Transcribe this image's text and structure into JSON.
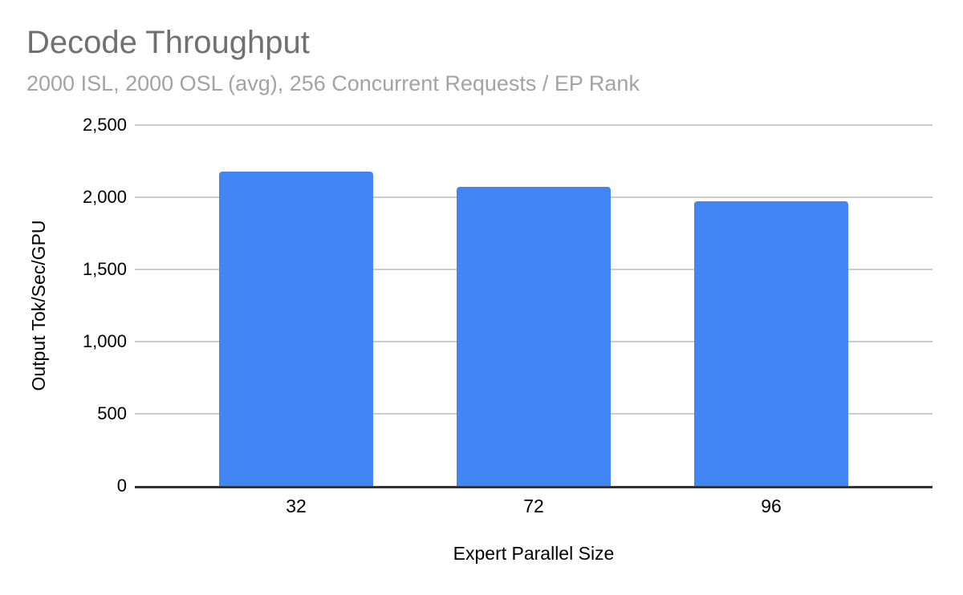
{
  "colors": {
    "bg": "#ffffff",
    "bar-color": "#4285f4",
    "title-color": "#707070",
    "subtitle-color": "#a3a3a3",
    "axis-text": "#000000",
    "grid-color": "#cccccc",
    "axis-line": "#333333"
  },
  "chart_data": {
    "type": "bar",
    "title": "Decode Throughput",
    "subtitle": "2000 ISL, 2000 OSL (avg), 256 Concurrent Requests / EP Rank",
    "xlabel": "Expert Parallel Size",
    "ylabel": "Output Tok/Sec/GPU",
    "categories": [
      "32",
      "72",
      "96"
    ],
    "values": [
      2180,
      2070,
      1970
    ],
    "ylim": [
      0,
      2500
    ],
    "yticks": [
      0,
      500,
      1000,
      1500,
      2000,
      2500
    ],
    "ytick_labels": [
      "0",
      "500",
      "1,000",
      "1,500",
      "2,000",
      "2,500"
    ],
    "grid": true,
    "legend": "none",
    "bar_color": "#4285f4"
  }
}
